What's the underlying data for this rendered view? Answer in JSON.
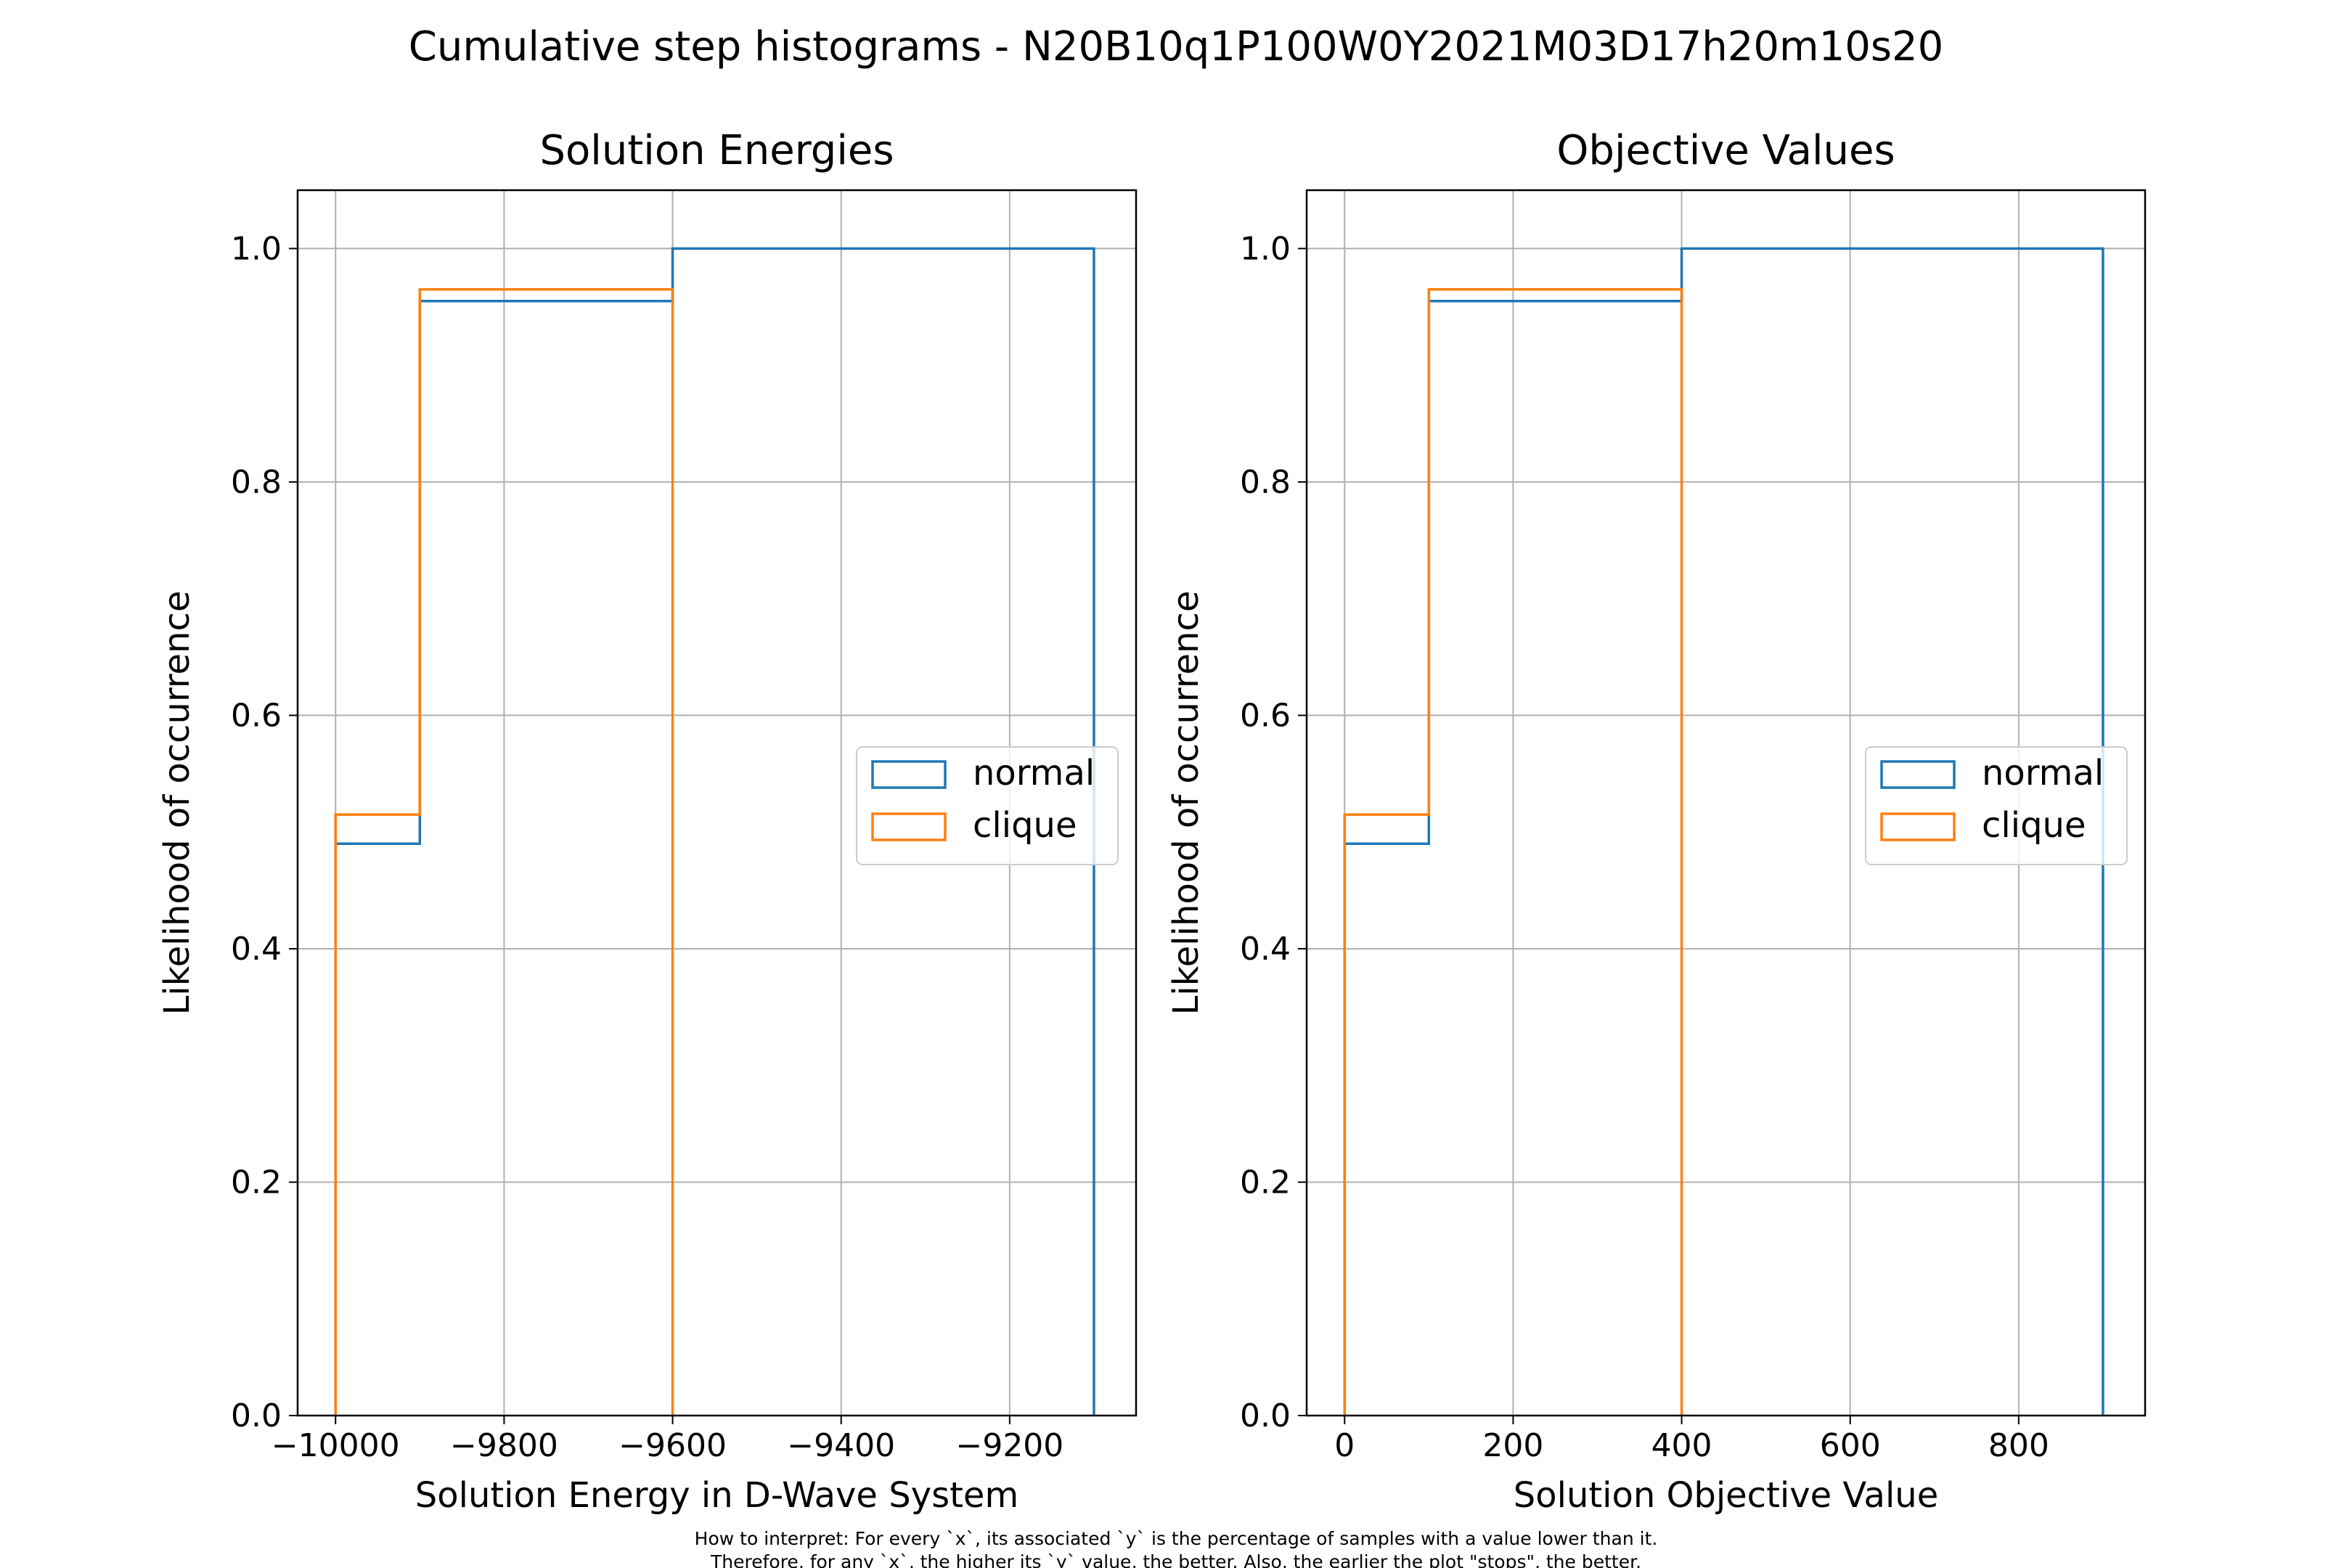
{
  "figure": {
    "suptitle": "Cumulative step histograms - N20B10q1P100W0Y2021M03D17h20m10s20",
    "caption_line1": "How to interpret: For every `x`, its associated `y` is the percentage of samples with a value lower than it.",
    "caption_line2": "Therefore, for any `x`, the higher its `y` value, the better. Also, the earlier the plot \"stops\", the better."
  },
  "chart_data": [
    {
      "type": "line",
      "title": "Solution Energies",
      "xlabel": "Solution Energy in D-Wave System",
      "ylabel": "Likelihood of occurrence",
      "xlim": [
        -10045,
        -9050
      ],
      "ylim": [
        0,
        1.05
      ],
      "xticks": [
        -10000,
        -9800,
        -9600,
        -9400,
        -9200
      ],
      "xtick_labels": [
        "−10000",
        "−9800",
        "−9600",
        "−9400",
        "−9200"
      ],
      "yticks": [
        0,
        0.2,
        0.4,
        0.6,
        0.8,
        1.0
      ],
      "ytick_labels": [
        "0.0",
        "0.2",
        "0.4",
        "0.6",
        "0.8",
        "1.0"
      ],
      "grid": true,
      "legend": "center right",
      "series": [
        {
          "name": "normal",
          "color": "#1f77b4",
          "bins": [
            -10000,
            -9900,
            -9600,
            -9100
          ],
          "cumulative": [
            0.49,
            0.955,
            1.0
          ]
        },
        {
          "name": "clique",
          "color": "#ff7f0e",
          "bins": [
            -10000,
            -9900,
            -9600
          ],
          "cumulative": [
            0.515,
            0.965
          ]
        }
      ]
    },
    {
      "type": "line",
      "title": "Objective Values",
      "xlabel": "Solution Objective Value",
      "ylabel": "Likelihood of occurrence",
      "xlim": [
        -45,
        950
      ],
      "ylim": [
        0,
        1.05
      ],
      "xticks": [
        0,
        200,
        400,
        600,
        800
      ],
      "xtick_labels": [
        "0",
        "200",
        "400",
        "600",
        "800"
      ],
      "yticks": [
        0,
        0.2,
        0.4,
        0.6,
        0.8,
        1.0
      ],
      "ytick_labels": [
        "0.0",
        "0.2",
        "0.4",
        "0.6",
        "0.8",
        "1.0"
      ],
      "grid": true,
      "legend": "center right",
      "series": [
        {
          "name": "normal",
          "color": "#1f77b4",
          "bins": [
            0,
            100,
            400,
            900
          ],
          "cumulative": [
            0.49,
            0.955,
            1.0
          ]
        },
        {
          "name": "clique",
          "color": "#ff7f0e",
          "bins": [
            0,
            100,
            400
          ],
          "cumulative": [
            0.515,
            0.965
          ]
        }
      ]
    }
  ]
}
